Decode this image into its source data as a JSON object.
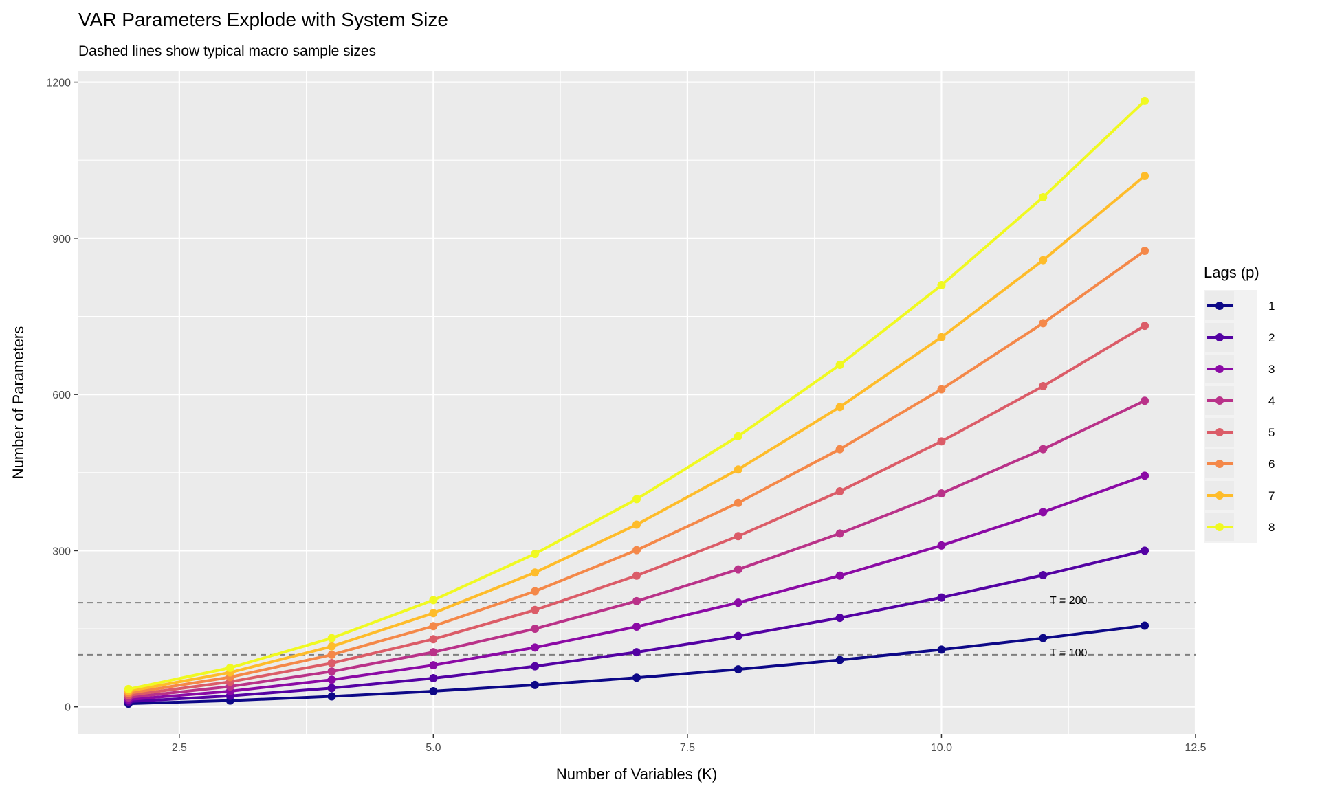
{
  "chart_data": {
    "type": "line",
    "title": "VAR Parameters Explode with System Size",
    "subtitle": "Dashed lines show typical macro sample sizes",
    "xlabel": "Number of Variables (K)",
    "ylabel": "Number of Parameters",
    "xlim": [
      1.5,
      12.5
    ],
    "ylim": [
      -51.9,
      1221.9
    ],
    "x_ticks": [
      2.5,
      5.0,
      7.5,
      10.0,
      12.5
    ],
    "x_tick_labels": [
      "2.5",
      "5.0",
      "7.5",
      "10.0",
      "12.5"
    ],
    "y_ticks": [
      0,
      300,
      600,
      900,
      1200
    ],
    "y_tick_labels": [
      "0",
      "300",
      "600",
      "900",
      "1200"
    ],
    "grid": true,
    "legend": {
      "title": "Lags (p)",
      "placement": "right"
    },
    "x": [
      2,
      3,
      4,
      5,
      6,
      7,
      8,
      9,
      10,
      11,
      12
    ],
    "series": [
      {
        "name": "1",
        "color": "#0D0887",
        "values": [
          6,
          12,
          20,
          30,
          42,
          56,
          72,
          90,
          110,
          132,
          156
        ]
      },
      {
        "name": "2",
        "color": "#5402A3",
        "values": [
          10,
          21,
          36,
          55,
          78,
          105,
          136,
          171,
          210,
          253,
          300
        ]
      },
      {
        "name": "3",
        "color": "#8B0AA5",
        "values": [
          14,
          30,
          52,
          80,
          114,
          154,
          200,
          252,
          310,
          374,
          444
        ]
      },
      {
        "name": "4",
        "color": "#B93289",
        "values": [
          18,
          39,
          68,
          105,
          150,
          203,
          264,
          333,
          410,
          495,
          588
        ]
      },
      {
        "name": "5",
        "color": "#DB5C68",
        "values": [
          22,
          48,
          84,
          130,
          186,
          252,
          328,
          414,
          510,
          616,
          732
        ]
      },
      {
        "name": "6",
        "color": "#F48849",
        "values": [
          26,
          57,
          100,
          155,
          222,
          301,
          392,
          495,
          610,
          737,
          876
        ]
      },
      {
        "name": "7",
        "color": "#FEBC2A",
        "values": [
          30,
          66,
          116,
          180,
          258,
          350,
          456,
          576,
          710,
          858,
          1020
        ]
      },
      {
        "name": "8",
        "color": "#F0F921",
        "values": [
          34,
          75,
          132,
          205,
          294,
          399,
          520,
          657,
          810,
          979,
          1164
        ]
      }
    ],
    "reference_lines": [
      {
        "y": 200,
        "label": "T = 200",
        "label_x": 11.25
      },
      {
        "y": 100,
        "label": "T = 100",
        "label_x": 11.25
      }
    ]
  }
}
